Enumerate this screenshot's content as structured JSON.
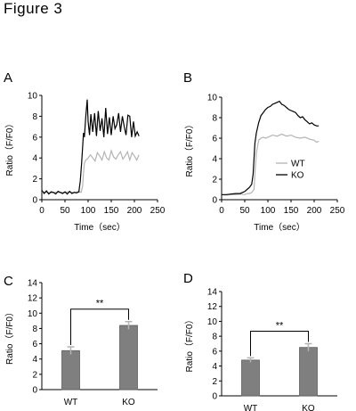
{
  "figure_title": "Figure 3",
  "colors": {
    "wt": "#b4b4b4",
    "ko": "#000000",
    "bar": "#7f7f7f",
    "error": "#b4b4b4",
    "axis": "#000000"
  },
  "chart_data": [
    {
      "panel": "A",
      "type": "line",
      "xlabel": "Time（sec）",
      "ylabel": "Ratio（F/F0）",
      "xlim": [
        0,
        250
      ],
      "ylim": [
        0,
        10
      ],
      "xticks": [
        0,
        50,
        100,
        150,
        200,
        250
      ],
      "yticks": [
        0,
        2,
        4,
        6,
        8,
        10
      ],
      "legend": null,
      "series": [
        {
          "key": "WT",
          "x": [
            0,
            10,
            20,
            30,
            40,
            50,
            55,
            60,
            65,
            70,
            75,
            80,
            85,
            88,
            90,
            92,
            95,
            98,
            100,
            105,
            110,
            115,
            120,
            125,
            130,
            135,
            140,
            145,
            150,
            155,
            160,
            165,
            170,
            175,
            180,
            185,
            190,
            195,
            200,
            205,
            210
          ],
          "y": [
            0.75,
            0.7,
            0.65,
            0.72,
            0.68,
            0.7,
            0.75,
            0.72,
            0.7,
            0.7,
            0.75,
            0.78,
            0.7,
            1.3,
            2.5,
            3.5,
            3.8,
            3.9,
            4.0,
            4.3,
            4.0,
            3.7,
            4.5,
            4.2,
            3.8,
            4.6,
            4.0,
            3.8,
            4.7,
            4.1,
            3.9,
            4.3,
            4.6,
            3.9,
            4.2,
            4.6,
            3.8,
            4.5,
            4.2,
            3.8,
            4.3
          ]
        },
        {
          "key": "KO",
          "x": [
            0,
            5,
            10,
            15,
            20,
            25,
            30,
            35,
            40,
            45,
            50,
            55,
            60,
            65,
            70,
            75,
            80,
            83,
            86,
            88,
            90,
            92,
            95,
            98,
            100,
            103,
            106,
            110,
            114,
            118,
            122,
            126,
            130,
            134,
            138,
            142,
            146,
            150,
            154,
            158,
            162,
            166,
            170,
            174,
            178,
            182,
            186,
            190,
            194,
            198,
            202,
            206,
            210
          ],
          "y": [
            0.9,
            0.6,
            0.85,
            0.55,
            0.75,
            0.7,
            0.55,
            0.8,
            0.7,
            0.6,
            0.75,
            0.55,
            0.8,
            0.6,
            0.7,
            0.65,
            0.75,
            1.8,
            3.5,
            5.0,
            6.4,
            6.0,
            8.0,
            9.6,
            7.5,
            6.2,
            8.2,
            6.5,
            8.3,
            6.1,
            8.5,
            6.6,
            7.8,
            6.0,
            8.8,
            6.3,
            7.9,
            6.2,
            8.0,
            6.8,
            7.2,
            8.3,
            6.5,
            8.0,
            7.0,
            6.2,
            8.1,
            8.0,
            6.0,
            7.5,
            6.1,
            6.5,
            6.1
          ]
        }
      ]
    },
    {
      "panel": "B",
      "type": "line",
      "xlabel": "Time（sec）",
      "ylabel": "Ratio（F/F0）",
      "xlim": [
        0,
        250
      ],
      "ylim": [
        0,
        10
      ],
      "xticks": [
        0,
        50,
        100,
        150,
        200,
        250
      ],
      "yticks": [
        0,
        2,
        4,
        6,
        8,
        10
      ],
      "legend": "right",
      "series": [
        {
          "name": "WT",
          "x": [
            0,
            10,
            20,
            30,
            40,
            50,
            55,
            60,
            65,
            70,
            72,
            75,
            80,
            85,
            90,
            95,
            100,
            110,
            120,
            130,
            140,
            150,
            160,
            170,
            180,
            190,
            200,
            205,
            210
          ],
          "y": [
            0.5,
            0.45,
            0.5,
            0.5,
            0.55,
            0.5,
            0.6,
            0.6,
            0.7,
            1.0,
            2.5,
            4.5,
            5.8,
            6.0,
            6.1,
            6.0,
            6.1,
            6.3,
            6.2,
            6.4,
            6.2,
            6.3,
            6.1,
            6.0,
            6.1,
            5.9,
            5.8,
            5.6,
            5.7
          ]
        },
        {
          "name": "KO",
          "x": [
            0,
            10,
            20,
            30,
            40,
            50,
            55,
            60,
            65,
            68,
            70,
            72,
            75,
            80,
            85,
            90,
            95,
            100,
            105,
            110,
            115,
            120,
            125,
            130,
            135,
            140,
            145,
            150,
            155,
            160,
            165,
            170,
            175,
            180,
            185,
            190,
            195,
            200,
            205,
            210
          ],
          "y": [
            0.5,
            0.5,
            0.55,
            0.6,
            0.6,
            0.8,
            1.0,
            1.2,
            1.5,
            2.5,
            4.0,
            5.5,
            6.5,
            7.5,
            8.2,
            8.5,
            8.8,
            9.0,
            9.1,
            9.3,
            9.4,
            9.5,
            9.6,
            9.3,
            9.2,
            9.0,
            8.8,
            8.7,
            8.6,
            8.5,
            8.2,
            8.0,
            8.1,
            7.8,
            7.6,
            7.4,
            7.5,
            7.3,
            7.2,
            7.2
          ]
        }
      ]
    },
    {
      "panel": "C",
      "type": "bar",
      "ylabel": "Ratio（F/F0）",
      "categories": [
        "WT",
        "KO"
      ],
      "values": [
        5.1,
        8.4
      ],
      "errors": [
        0.5,
        0.5
      ],
      "ylim": [
        0,
        14
      ],
      "yticks": [
        0,
        2,
        4,
        6,
        8,
        10,
        12,
        14
      ],
      "significance": "**"
    },
    {
      "panel": "D",
      "type": "bar",
      "ylabel": "Ratio（F/F0）",
      "categories": [
        "WT",
        "KO"
      ],
      "values": [
        4.8,
        6.5
      ],
      "errors": [
        0.3,
        0.5
      ],
      "ylim": [
        0,
        14
      ],
      "yticks": [
        0,
        2,
        4,
        6,
        8,
        10,
        12,
        14
      ],
      "significance": "**"
    }
  ]
}
